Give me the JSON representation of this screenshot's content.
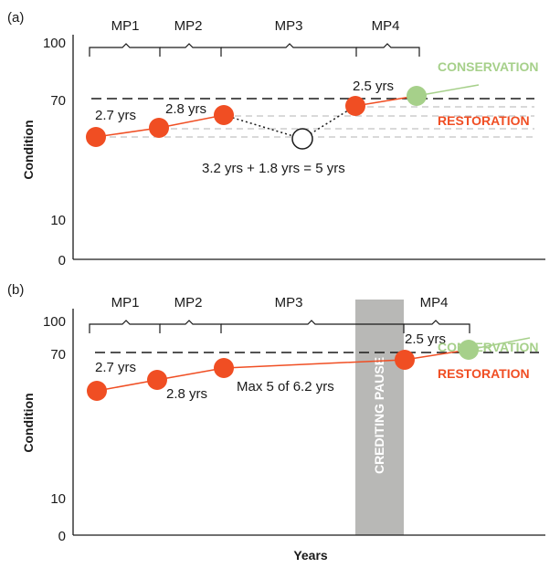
{
  "colors": {
    "restoration": "#f04e23",
    "conservation": "#a6d08a",
    "pause": "#b8b8b6",
    "axis": "#1a1a1a",
    "dashed_grey": "#bdbdbd"
  },
  "panels": [
    {
      "id": "a",
      "panel_label": "(a)",
      "ylabel": "Condition",
      "yticks": [
        "100",
        "70",
        "10",
        "0"
      ],
      "periods": [
        "MP1",
        "MP2",
        "MP3",
        "MP4"
      ],
      "conservation_label": "CONSERVATION",
      "restoration_label": "RESTORATION",
      "interval_labels": [
        "2.7 yrs",
        "2.8 yrs",
        "2.5 yrs"
      ],
      "gap_label": "3.2 yrs + 1.8 yrs = 5 yrs"
    },
    {
      "id": "b",
      "panel_label": "(b)",
      "ylabel": "Condition",
      "xlabel": "Years",
      "yticks": [
        "100",
        "70",
        "10",
        "0"
      ],
      "periods": [
        "MP1",
        "MP2",
        "MP3",
        "MP4"
      ],
      "conservation_label": "CONSERVATION",
      "restoration_label": "RESTORATION",
      "interval_labels": [
        "2.7 yrs",
        "2.8 yrs",
        "2.5 yrs"
      ],
      "max_label": "Max 5 of 6.2 yrs",
      "pause_label": "CREDITING PAUSE"
    }
  ]
}
